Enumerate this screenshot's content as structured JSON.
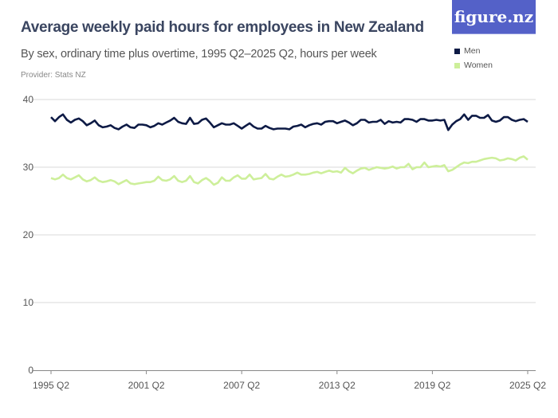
{
  "header": {
    "title": "Average weekly paid hours for employees in New Zealand",
    "subtitle": "By sex, ordinary time plus overtime, 1995 Q2–2025 Q2, hours per week",
    "provider": "Provider: Stats NZ",
    "logo": "figure.nz"
  },
  "colors": {
    "men": "#0d1a45",
    "women": "#cdef9a",
    "logo_bg": "#5461c8",
    "grid": "#d8d8d8"
  },
  "chart_data": {
    "type": "line",
    "title": "Average weekly paid hours for employees in New Zealand",
    "x_start": "1995 Q2",
    "x_end": "2025 Q2",
    "x_frequency": "quarterly",
    "x_ticks": [
      "1995 Q2",
      "2001 Q2",
      "2007 Q2",
      "2013 Q2",
      "2019 Q2",
      "2025 Q2"
    ],
    "y_ticks": [
      0,
      10,
      20,
      30,
      40
    ],
    "ylim": [
      0,
      40
    ],
    "grid": true,
    "legend": "top-right",
    "series": [
      {
        "name": "Men",
        "color": "#0d1a45",
        "values": [
          37.4,
          36.8,
          37.4,
          37.8,
          37.0,
          36.6,
          37.0,
          37.2,
          36.8,
          36.2,
          36.5,
          36.9,
          36.2,
          35.9,
          36.0,
          36.2,
          35.8,
          35.6,
          36.0,
          36.3,
          35.9,
          35.8,
          36.3,
          36.3,
          36.2,
          35.9,
          36.1,
          36.5,
          36.3,
          36.6,
          36.9,
          37.3,
          36.7,
          36.5,
          36.4,
          37.3,
          36.4,
          36.5,
          37.0,
          37.2,
          36.6,
          35.9,
          36.2,
          36.5,
          36.3,
          36.3,
          36.5,
          36.1,
          35.7,
          36.1,
          36.5,
          36.0,
          35.7,
          35.7,
          36.1,
          35.8,
          35.6,
          35.7,
          35.7,
          35.7,
          35.6,
          36.0,
          36.1,
          36.3,
          35.9,
          36.2,
          36.4,
          36.5,
          36.3,
          36.7,
          36.8,
          36.8,
          36.5,
          36.7,
          36.9,
          36.6,
          36.2,
          36.5,
          37.0,
          37.0,
          36.6,
          36.7,
          36.7,
          37.0,
          36.4,
          36.8,
          36.6,
          36.7,
          36.6,
          37.1,
          37.1,
          37.0,
          36.7,
          37.1,
          37.1,
          36.9,
          36.9,
          37.0,
          36.9,
          37.0,
          35.5,
          36.3,
          36.8,
          37.1,
          37.8,
          37.0,
          37.6,
          37.6,
          37.3,
          37.3,
          37.7,
          36.9,
          36.7,
          36.9,
          37.4,
          37.4,
          37.0,
          36.8,
          37.0,
          37.1,
          36.7
        ]
      },
      {
        "name": "Women",
        "color": "#cdef9a",
        "values": [
          28.4,
          28.2,
          28.4,
          28.9,
          28.4,
          28.2,
          28.5,
          28.8,
          28.2,
          27.9,
          28.1,
          28.5,
          28.0,
          27.8,
          27.9,
          28.1,
          27.9,
          27.5,
          27.8,
          28.1,
          27.6,
          27.5,
          27.6,
          27.7,
          27.8,
          27.8,
          28.0,
          28.6,
          28.1,
          28.0,
          28.2,
          28.7,
          28.0,
          27.8,
          28.0,
          28.7,
          27.8,
          27.6,
          28.1,
          28.4,
          28.0,
          27.4,
          27.7,
          28.5,
          28.0,
          28.0,
          28.5,
          28.8,
          28.3,
          28.3,
          28.9,
          28.2,
          28.3,
          28.4,
          29.0,
          28.3,
          28.2,
          28.6,
          28.9,
          28.6,
          28.7,
          28.9,
          29.2,
          28.9,
          28.9,
          29.0,
          29.2,
          29.3,
          29.1,
          29.3,
          29.5,
          29.3,
          29.4,
          29.2,
          29.9,
          29.4,
          29.1,
          29.5,
          29.8,
          29.9,
          29.6,
          29.8,
          30.0,
          29.9,
          29.8,
          29.9,
          30.1,
          29.8,
          30.0,
          30.0,
          30.5,
          29.7,
          30.0,
          30.0,
          30.7,
          30.0,
          30.1,
          30.2,
          30.1,
          30.3,
          29.4,
          29.6,
          30.0,
          30.4,
          30.7,
          30.6,
          30.8,
          30.8,
          31.0,
          31.2,
          31.3,
          31.4,
          31.3,
          31.0,
          31.1,
          31.3,
          31.2,
          31.0,
          31.4,
          31.6,
          31.1
        ]
      }
    ]
  }
}
